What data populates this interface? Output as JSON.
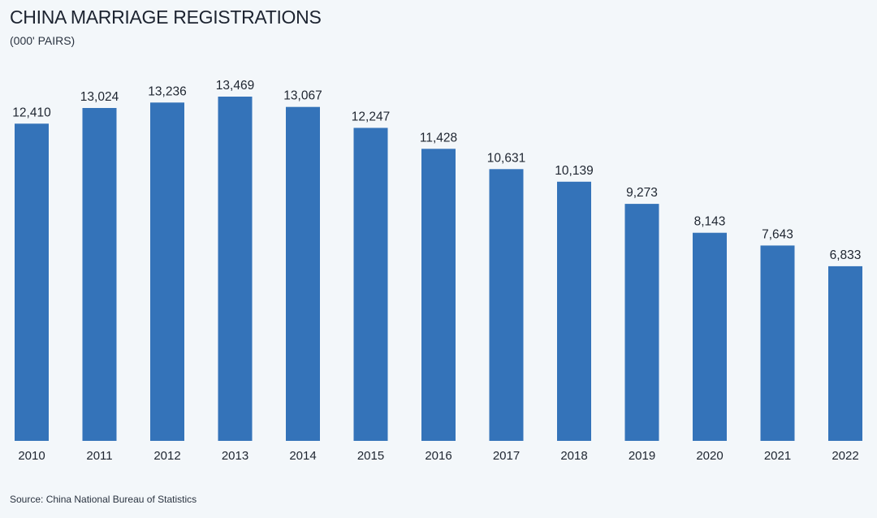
{
  "title": "CHINA MARRIAGE REGISTRATIONS",
  "subtitle": "(000' PAIRS)",
  "source": "Source: China National Bureau of Statistics",
  "colors": {
    "bar": "#3473b9",
    "background": "#f3f7fa"
  },
  "chart_data": {
    "type": "bar",
    "title": "CHINA MARRIAGE REGISTRATIONS",
    "subtitle": "(000' PAIRS)",
    "categories": [
      "2010",
      "2011",
      "2012",
      "2013",
      "2014",
      "2015",
      "2016",
      "2017",
      "2018",
      "2019",
      "2020",
      "2021",
      "2022"
    ],
    "values": [
      12410,
      13024,
      13236,
      13469,
      13067,
      12247,
      11428,
      10631,
      10139,
      9273,
      8143,
      7643,
      6833
    ],
    "value_labels": [
      "12,410",
      "13,024",
      "13,236",
      "13,469",
      "13,067",
      "12,247",
      "11,428",
      "10,631",
      "10,139",
      "9,273",
      "8,143",
      "7,643",
      "6,833"
    ],
    "xlabel": "",
    "ylabel": "",
    "ylim": [
      0,
      13469
    ],
    "grid": false,
    "legend": "none"
  }
}
